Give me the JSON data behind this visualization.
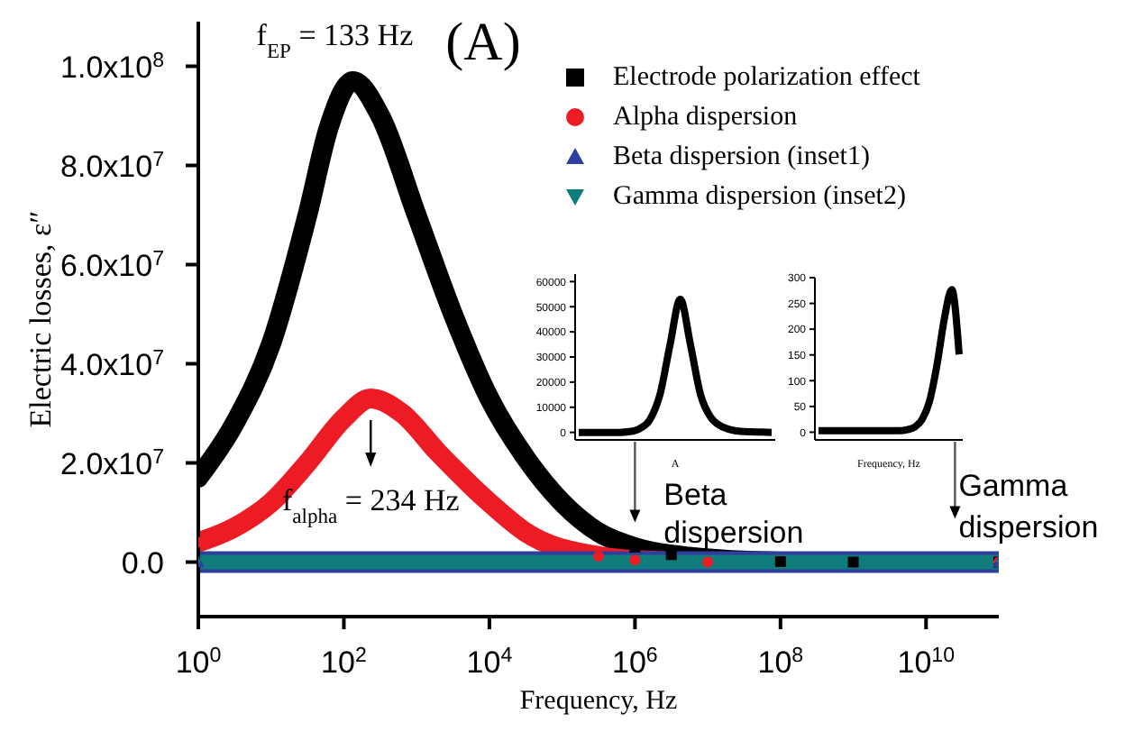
{
  "chart_data": [
    {
      "type": "line",
      "xlabel": "Frequency, Hz",
      "ylabel": "Electric losses, ε″",
      "log": "x",
      "legend": "top right",
      "xlim": [
        1,
        100000000000
      ],
      "ylim": [
        -11000000,
        109000000
      ],
      "xticks": [
        {
          "value": 1,
          "label": "10$^{0}$"
        },
        {
          "value": 100,
          "label": "10$^{2}$"
        },
        {
          "value": 10000,
          "label": "10$^{4}$"
        },
        {
          "value": 1000000,
          "label": "10$^{6}$"
        },
        {
          "value": 100000000,
          "label": "10$^{8}$"
        },
        {
          "value": 10000000000,
          "label": "10$^{10}$"
        }
      ],
      "yticks": [
        {
          "value": 0,
          "label": "0.0"
        },
        {
          "value": 20000000,
          "label": "2.0x10$^{7}$"
        },
        {
          "value": 40000000,
          "label": "4.0x10$^{7}$"
        },
        {
          "value": 60000000,
          "label": "6.0x10$^{7}$"
        },
        {
          "value": 80000000,
          "label": "8.0x10$^{7}$"
        },
        {
          "value": 100000000,
          "label": "1.0x10$^{8}$"
        }
      ],
      "series": [
        {
          "name": "Electrode polarization effect",
          "color": "#000000",
          "marker": "square",
          "x": [
            1,
            3.16,
            10,
            31.6,
            63.1,
            133,
            316,
            1000,
            3160,
            10000,
            31600,
            100000,
            316000,
            1000000,
            3160000,
            100000000,
            1000000000,
            100000000000
          ],
          "values": [
            17000000,
            28000000,
            44000000,
            70000000,
            88000000,
            97000000,
            90000000,
            70000000,
            50000000,
            33000000,
            21000000,
            12000000,
            6000000,
            3000000,
            1500000,
            100000,
            0,
            0
          ]
        },
        {
          "name": "Alpha dispersion",
          "color": "#ed1c24",
          "marker": "circle",
          "x": [
            1,
            3.16,
            10,
            31.6,
            100,
            234,
            631,
            2000,
            10000,
            31600,
            316000,
            1000000,
            10000000,
            100000000000
          ],
          "values": [
            4000000,
            7000000,
            12000000,
            20000000,
            29000000,
            33000000,
            30000000,
            22000000,
            12000000,
            6000000,
            1200000,
            400000,
            0,
            0
          ]
        },
        {
          "name": "Beta dispersion (inset1)",
          "color": "#2e3f9e",
          "marker": "triangle",
          "x": [
            1,
            100000000000
          ],
          "values": [
            0,
            0
          ]
        },
        {
          "name": "Gamma dispersion (inset2)",
          "color": "#0e7c7b",
          "marker": "triangle-down",
          "x": [
            1,
            100000000000
          ],
          "values": [
            0,
            0
          ]
        }
      ],
      "annotations": [
        {
          "text": "f$_{EP}$ = 133 Hz",
          "x": 133,
          "y": 97000000
        },
        "(A)",
        {
          "text": "f$_{alpha}$ = 234 Hz",
          "x": 234,
          "y": 33000000
        },
        {
          "text": "Beta dispersion",
          "x": 1000000,
          "y": 0
        },
        {
          "text": "Gamma dispersion",
          "x": 25000000000,
          "y": 0
        }
      ]
    },
    {
      "type": "line",
      "xlabel": "A",
      "tick_labels": "y",
      "categories": [
        null,
        null,
        null,
        null,
        null,
        null,
        null,
        null,
        null,
        null,
        null,
        null,
        null,
        null,
        null,
        null,
        null,
        null,
        null,
        null
      ],
      "ylim": [
        -3000,
        63000
      ],
      "yticks": [
        0,
        10000,
        20000,
        30000,
        40000,
        50000,
        60000
      ],
      "series": [
        {
          "color": "#000000",
          "values": [
            0,
            0,
            0,
            0,
            0,
            300,
            1500,
            5000,
            15000,
            35000,
            53000,
            35000,
            15000,
            6000,
            2500,
            1000,
            400,
            200,
            100,
            0
          ]
        }
      ]
    },
    {
      "type": "line",
      "xlabel": "Frequency, Hz",
      "tick_labels": "y",
      "categories": [
        null,
        null,
        null,
        null,
        null,
        null,
        null,
        null,
        null,
        null,
        null,
        null,
        null,
        null,
        null,
        null,
        null,
        null,
        null,
        null
      ],
      "ylim": [
        -15,
        300
      ],
      "yticks": [
        0,
        50,
        100,
        150,
        200,
        250,
        300
      ],
      "series": [
        {
          "color": "#000000",
          "values": [
            3,
            3,
            3,
            3,
            3,
            3,
            3,
            3,
            3,
            3,
            3,
            3,
            5,
            10,
            25,
            60,
            130,
            220,
            277,
            151
          ]
        }
      ]
    }
  ]
}
